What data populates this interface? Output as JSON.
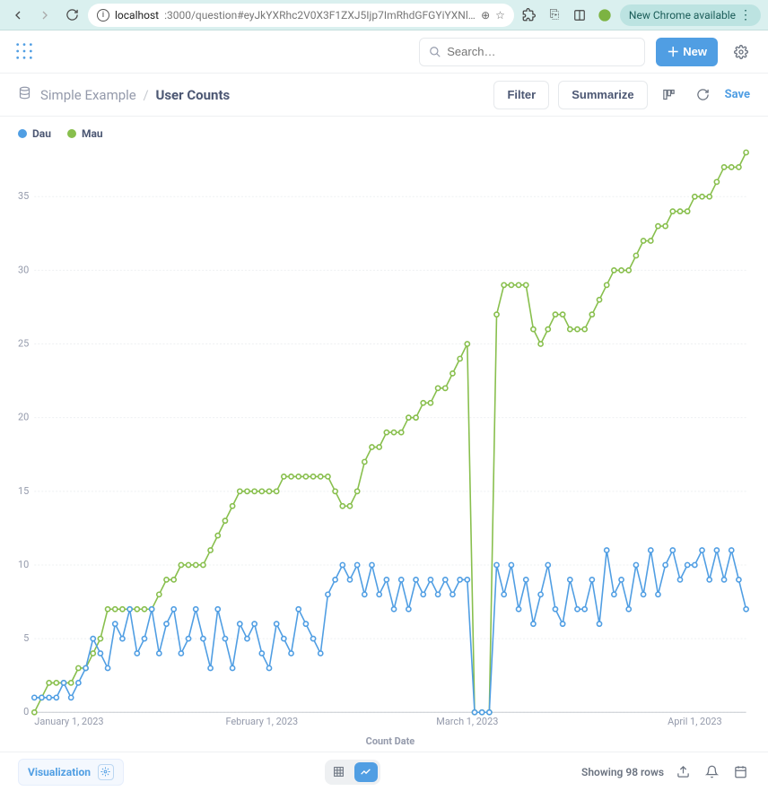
{
  "browser": {
    "url_host": "localhost",
    "url_path": ":3000/question#eyJkYXRhc2V0X3F1ZXJ5Ijp7ImRhdGFGYiYXNlIjozLCJ0eXBlIjoicXVlcnkiLCJxdWVyeSI6e...",
    "update_chip": "New Chrome available"
  },
  "header": {
    "search_placeholder": "Search…",
    "new_btn": "New"
  },
  "page": {
    "crumb_db": "Simple Example",
    "crumb_cur": "User Counts",
    "filter": "Filter",
    "summarize": "Summarize",
    "save": "Save"
  },
  "legend": [
    {
      "label": "Dau",
      "color": "#509ee3"
    },
    {
      "label": "Mau",
      "color": "#88bf4d"
    }
  ],
  "chart": {
    "ylim": [
      0,
      38
    ],
    "yticks": [
      0,
      5,
      10,
      15,
      20,
      25,
      30,
      35
    ],
    "x_count": 98,
    "x_label": "Count Date",
    "x_tick_labels": {
      "0": "January 1, 2023",
      "31": "February 1, 2023",
      "59": "March 1, 2023",
      "90": "April 1, 2023"
    },
    "colors": {
      "dau": "#509ee3",
      "mau": "#88bf4d",
      "grid": "#eef0f2",
      "axis_text": "#949aab"
    },
    "series": {
      "mau": [
        0,
        1,
        2,
        2,
        2,
        2,
        3,
        3,
        4,
        5,
        7,
        7,
        7,
        7,
        7,
        7,
        7,
        8,
        9,
        9,
        10,
        10,
        10,
        10,
        11,
        12,
        13,
        14,
        15,
        15,
        15,
        15,
        15,
        15,
        16,
        16,
        16,
        16,
        16,
        16,
        16,
        15,
        14,
        14,
        15,
        17,
        18,
        18,
        19,
        19,
        19,
        20,
        20,
        21,
        21,
        22,
        22,
        23,
        24,
        25,
        0,
        0,
        0,
        27,
        29,
        29,
        29,
        29,
        26,
        25,
        26,
        27,
        27,
        26,
        26,
        26,
        27,
        28,
        29,
        30,
        30,
        30,
        31,
        32,
        32,
        33,
        33,
        34,
        34,
        34,
        35,
        35,
        35,
        36,
        37,
        37,
        37,
        38
      ],
      "dau": [
        1,
        1,
        1,
        1,
        2,
        1,
        2,
        3,
        5,
        4,
        3,
        6,
        5,
        7,
        4,
        5,
        7,
        4,
        6,
        7,
        4,
        5,
        7,
        5,
        3,
        7,
        5,
        3,
        6,
        5,
        6,
        4,
        3,
        6,
        5,
        4,
        7,
        6,
        5,
        4,
        8,
        9,
        10,
        9,
        10,
        8,
        10,
        8,
        9,
        7,
        9,
        7,
        9,
        8,
        9,
        8,
        9,
        8,
        9,
        9,
        0,
        0,
        0,
        10,
        8,
        10,
        7,
        9,
        6,
        8,
        10,
        7,
        6,
        9,
        7,
        7,
        9,
        6,
        11,
        8,
        9,
        7,
        10,
        8,
        11,
        8,
        10,
        11,
        9,
        10,
        10,
        11,
        9,
        11,
        9,
        11,
        9,
        7
      ]
    }
  },
  "footer": {
    "viz": "Visualization",
    "rows": "Showing 98 rows"
  }
}
